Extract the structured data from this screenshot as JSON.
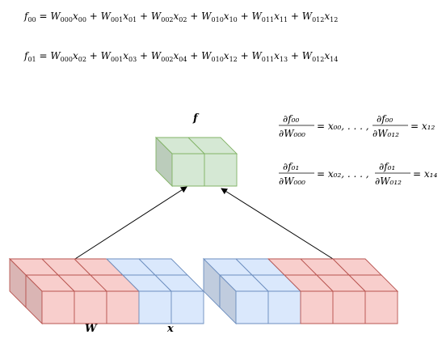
{
  "equations": {
    "f00": [
      "f",
      "00",
      " = ",
      "W",
      "000",
      "x",
      "00",
      " + ",
      "W",
      "001",
      "x",
      "01",
      " + ",
      "W",
      "002",
      "x",
      "02",
      " + ",
      "W",
      "010",
      "x",
      "10",
      " + ",
      "W",
      "011",
      "x",
      "11",
      " + ",
      "W",
      "012",
      "x",
      "12"
    ],
    "f01": [
      "f",
      "01",
      " = ",
      "W",
      "000",
      "x",
      "02",
      " + ",
      "W",
      "001",
      "x",
      "03",
      " + ",
      "W",
      "002",
      "x",
      "04",
      " + ",
      "W",
      "010",
      "x",
      "12",
      " + ",
      "W",
      "011",
      "x",
      "13",
      " + ",
      "W",
      "012",
      "x",
      "14"
    ]
  },
  "derivatives": {
    "row1": {
      "d1_num": "∂f₀₀",
      "d1_den": "∂W₀₀₀",
      "eq1": "= x₀₀, . . . ,",
      "d2_num": "∂f₀₀",
      "d2_den": "∂W₀₁₂",
      "eq2": "= x₁₂"
    },
    "row2": {
      "d1_num": "∂f₀₁",
      "d1_den": "∂W₀₀₀",
      "eq1": "= x₀₂, . . . ,",
      "d2_num": "∂f₀₁",
      "d2_den": "∂W₀₁₂",
      "eq2": "= x₁₄"
    }
  },
  "labels": {
    "output": "f",
    "weights": "W",
    "input": "x"
  },
  "colors": {
    "red_fill": "#f8cecc",
    "red_stroke": "#b85450",
    "blue_fill": "#dae8fc",
    "blue_stroke": "#6c8ebf",
    "green_fill": "#d5e8d4",
    "green_stroke": "#82b366"
  }
}
